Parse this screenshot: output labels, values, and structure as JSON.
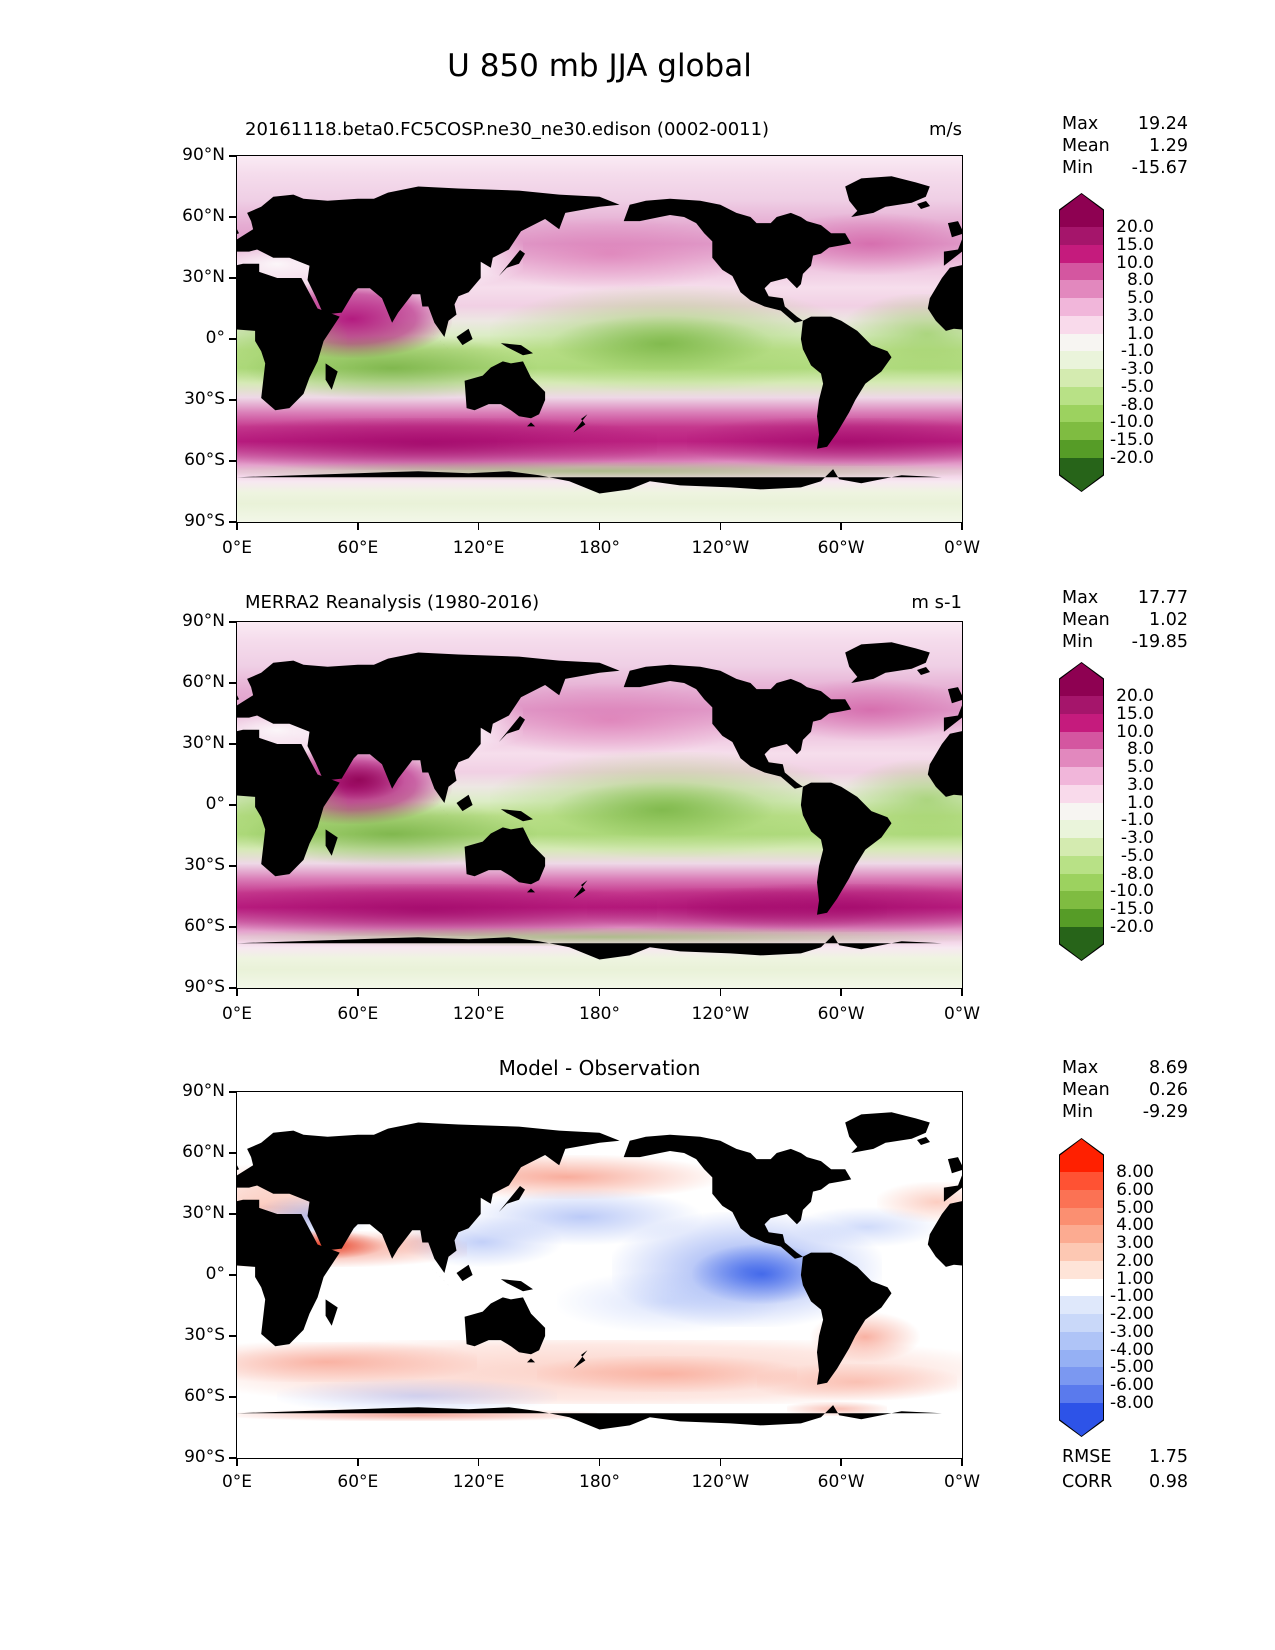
{
  "page": {
    "title": "U 850 mb JJA global"
  },
  "axes": {
    "x_ticks": [
      "0°E",
      "60°E",
      "120°E",
      "180°",
      "120°W",
      "60°W",
      "0°W"
    ],
    "y_ticks": [
      "90°N",
      "60°N",
      "30°N",
      "0°",
      "30°S",
      "60°S",
      "90°S"
    ]
  },
  "panels": [
    {
      "id": "model",
      "subtitle": "20161118.beta0.FC5COSP.ne30_ne30.edison (0002-0011)",
      "units": "m/s",
      "stats": {
        "max_label": "Max",
        "max_value": "19.24",
        "mean_label": "Mean",
        "mean_value": "1.29",
        "min_label": "Min",
        "min_value": "-15.67"
      },
      "colorbar": {
        "ticks": [
          "20.0",
          "15.0",
          "10.0",
          "8.0",
          "5.0",
          "3.0",
          "1.0",
          "-1.0",
          "-3.0",
          "-5.0",
          "-8.0",
          "-10.0",
          "-15.0",
          "-20.0"
        ],
        "colors": [
          "#8E0152",
          "#A5156B",
          "#C51B7D",
          "#D456A0",
          "#E288BE",
          "#F1B6DA",
          "#F9DAEB",
          "#F7F5F2",
          "#EAF4DB",
          "#D4EBB0",
          "#B8E186",
          "#9CD25F",
          "#7FBC41",
          "#569C27",
          "#276419"
        ]
      }
    },
    {
      "id": "observation",
      "subtitle": "MERRA2 Reanalysis (1980-2016)",
      "units": "m s-1",
      "stats": {
        "max_label": "Max",
        "max_value": "17.77",
        "mean_label": "Mean",
        "mean_value": "1.02",
        "min_label": "Min",
        "min_value": "-19.85"
      },
      "colorbar": {
        "ticks": [
          "20.0",
          "15.0",
          "10.0",
          "8.0",
          "5.0",
          "3.0",
          "1.0",
          "-1.0",
          "-3.0",
          "-5.0",
          "-8.0",
          "-10.0",
          "-15.0",
          "-20.0"
        ],
        "colors": [
          "#8E0152",
          "#A5156B",
          "#C51B7D",
          "#D456A0",
          "#E288BE",
          "#F1B6DA",
          "#F9DAEB",
          "#F7F5F2",
          "#EAF4DB",
          "#D4EBB0",
          "#B8E186",
          "#9CD25F",
          "#7FBC41",
          "#569C27",
          "#276419"
        ]
      }
    },
    {
      "id": "difference",
      "subtitle": "Model - Observation",
      "units": "",
      "stats": {
        "max_label": "Max",
        "max_value": "8.69",
        "mean_label": "Mean",
        "mean_value": "0.26",
        "min_label": "Min",
        "min_value": "-9.29"
      },
      "extra": {
        "rmse_label": "RMSE",
        "rmse_value": "1.75",
        "corr_label": "CORR",
        "corr_value": "0.98"
      },
      "colorbar": {
        "ticks": [
          "8.00",
          "6.00",
          "5.00",
          "4.00",
          "3.00",
          "2.00",
          "1.00",
          "-1.00",
          "-2.00",
          "-3.00",
          "-4.00",
          "-5.00",
          "-6.00",
          "-8.00"
        ],
        "colors": [
          "#FF2000",
          "#FF5233",
          "#FB7254",
          "#FB8F71",
          "#FCAB91",
          "#FDC8B3",
          "#FEE4D8",
          "#FFFFFF",
          "#DFE8FB",
          "#C9D8F9",
          "#AFC4F7",
          "#95B0F4",
          "#7B98F1",
          "#5A7AED",
          "#2D53E8"
        ]
      }
    }
  ],
  "chart_data": {
    "type": "heatmap",
    "subtype": "filled-contour lat-lon maps (3-panel model vs reanalysis comparison)",
    "variable": "U wind",
    "level": "850 mb",
    "season": "JJA",
    "region": "global",
    "title": "U 850 mb JJA global",
    "lon_range_deg_east": [
      0,
      360
    ],
    "lat_range_deg": [
      -90,
      90
    ],
    "panels": [
      {
        "name": "model",
        "title": "20161118.beta0.FC5COSP.ne30_ne30.edison (0002-0011)",
        "units": "m/s",
        "max": 19.24,
        "mean": 1.29,
        "min": -15.67,
        "contour_levels": [
          -20,
          -15,
          -10,
          -8,
          -5,
          -3,
          -1,
          1,
          3,
          5,
          8,
          10,
          15,
          20
        ],
        "colormap": "pink-magenta positive / green negative (PiYG-like), extended both ends"
      },
      {
        "name": "reference",
        "title": "MERRA2 Reanalysis (1980-2016)",
        "units": "m s-1",
        "max": 17.77,
        "mean": 1.02,
        "min": -19.85,
        "contour_levels": [
          -20,
          -15,
          -10,
          -8,
          -5,
          -3,
          -1,
          1,
          3,
          5,
          8,
          10,
          15,
          20
        ],
        "colormap": "pink-magenta positive / green negative (PiYG-like), extended both ends"
      },
      {
        "name": "difference",
        "title": "Model - Observation",
        "max": 8.69,
        "mean": 0.26,
        "min": -9.29,
        "rmse": 1.75,
        "corr": 0.98,
        "contour_levels": [
          -8,
          -6,
          -5,
          -4,
          -3,
          -2,
          -1,
          1,
          2,
          3,
          4,
          5,
          6,
          8
        ],
        "colormap": "red positive / blue negative, white near zero, extended both ends"
      }
    ],
    "notable_features_estimated": [
      {
        "feature": "Southern Ocean westerly jet 40-60S",
        "value_m_s": "15 to >20 (both model and MERRA2)"
      },
      {
        "feature": "Somali/Arabian Sea jet ~10-15N, 50-70E",
        "value_m_s": ">15"
      },
      {
        "feature": "Tropical easterlies (S Indian and equatorial Pacific/Atlantic)",
        "value_m_s": "-5 to -15"
      },
      {
        "feature": "Difference: equatorial E Pacific easterly bias",
        "value_m_s": "-8"
      },
      {
        "feature": "Difference: Sahel/Arabian westerly bias ~15N",
        "value_m_s": "+8"
      },
      {
        "feature": "Difference: broad weak westerly bias 30-55S",
        "value_m_s": "+1 to +3"
      }
    ]
  }
}
